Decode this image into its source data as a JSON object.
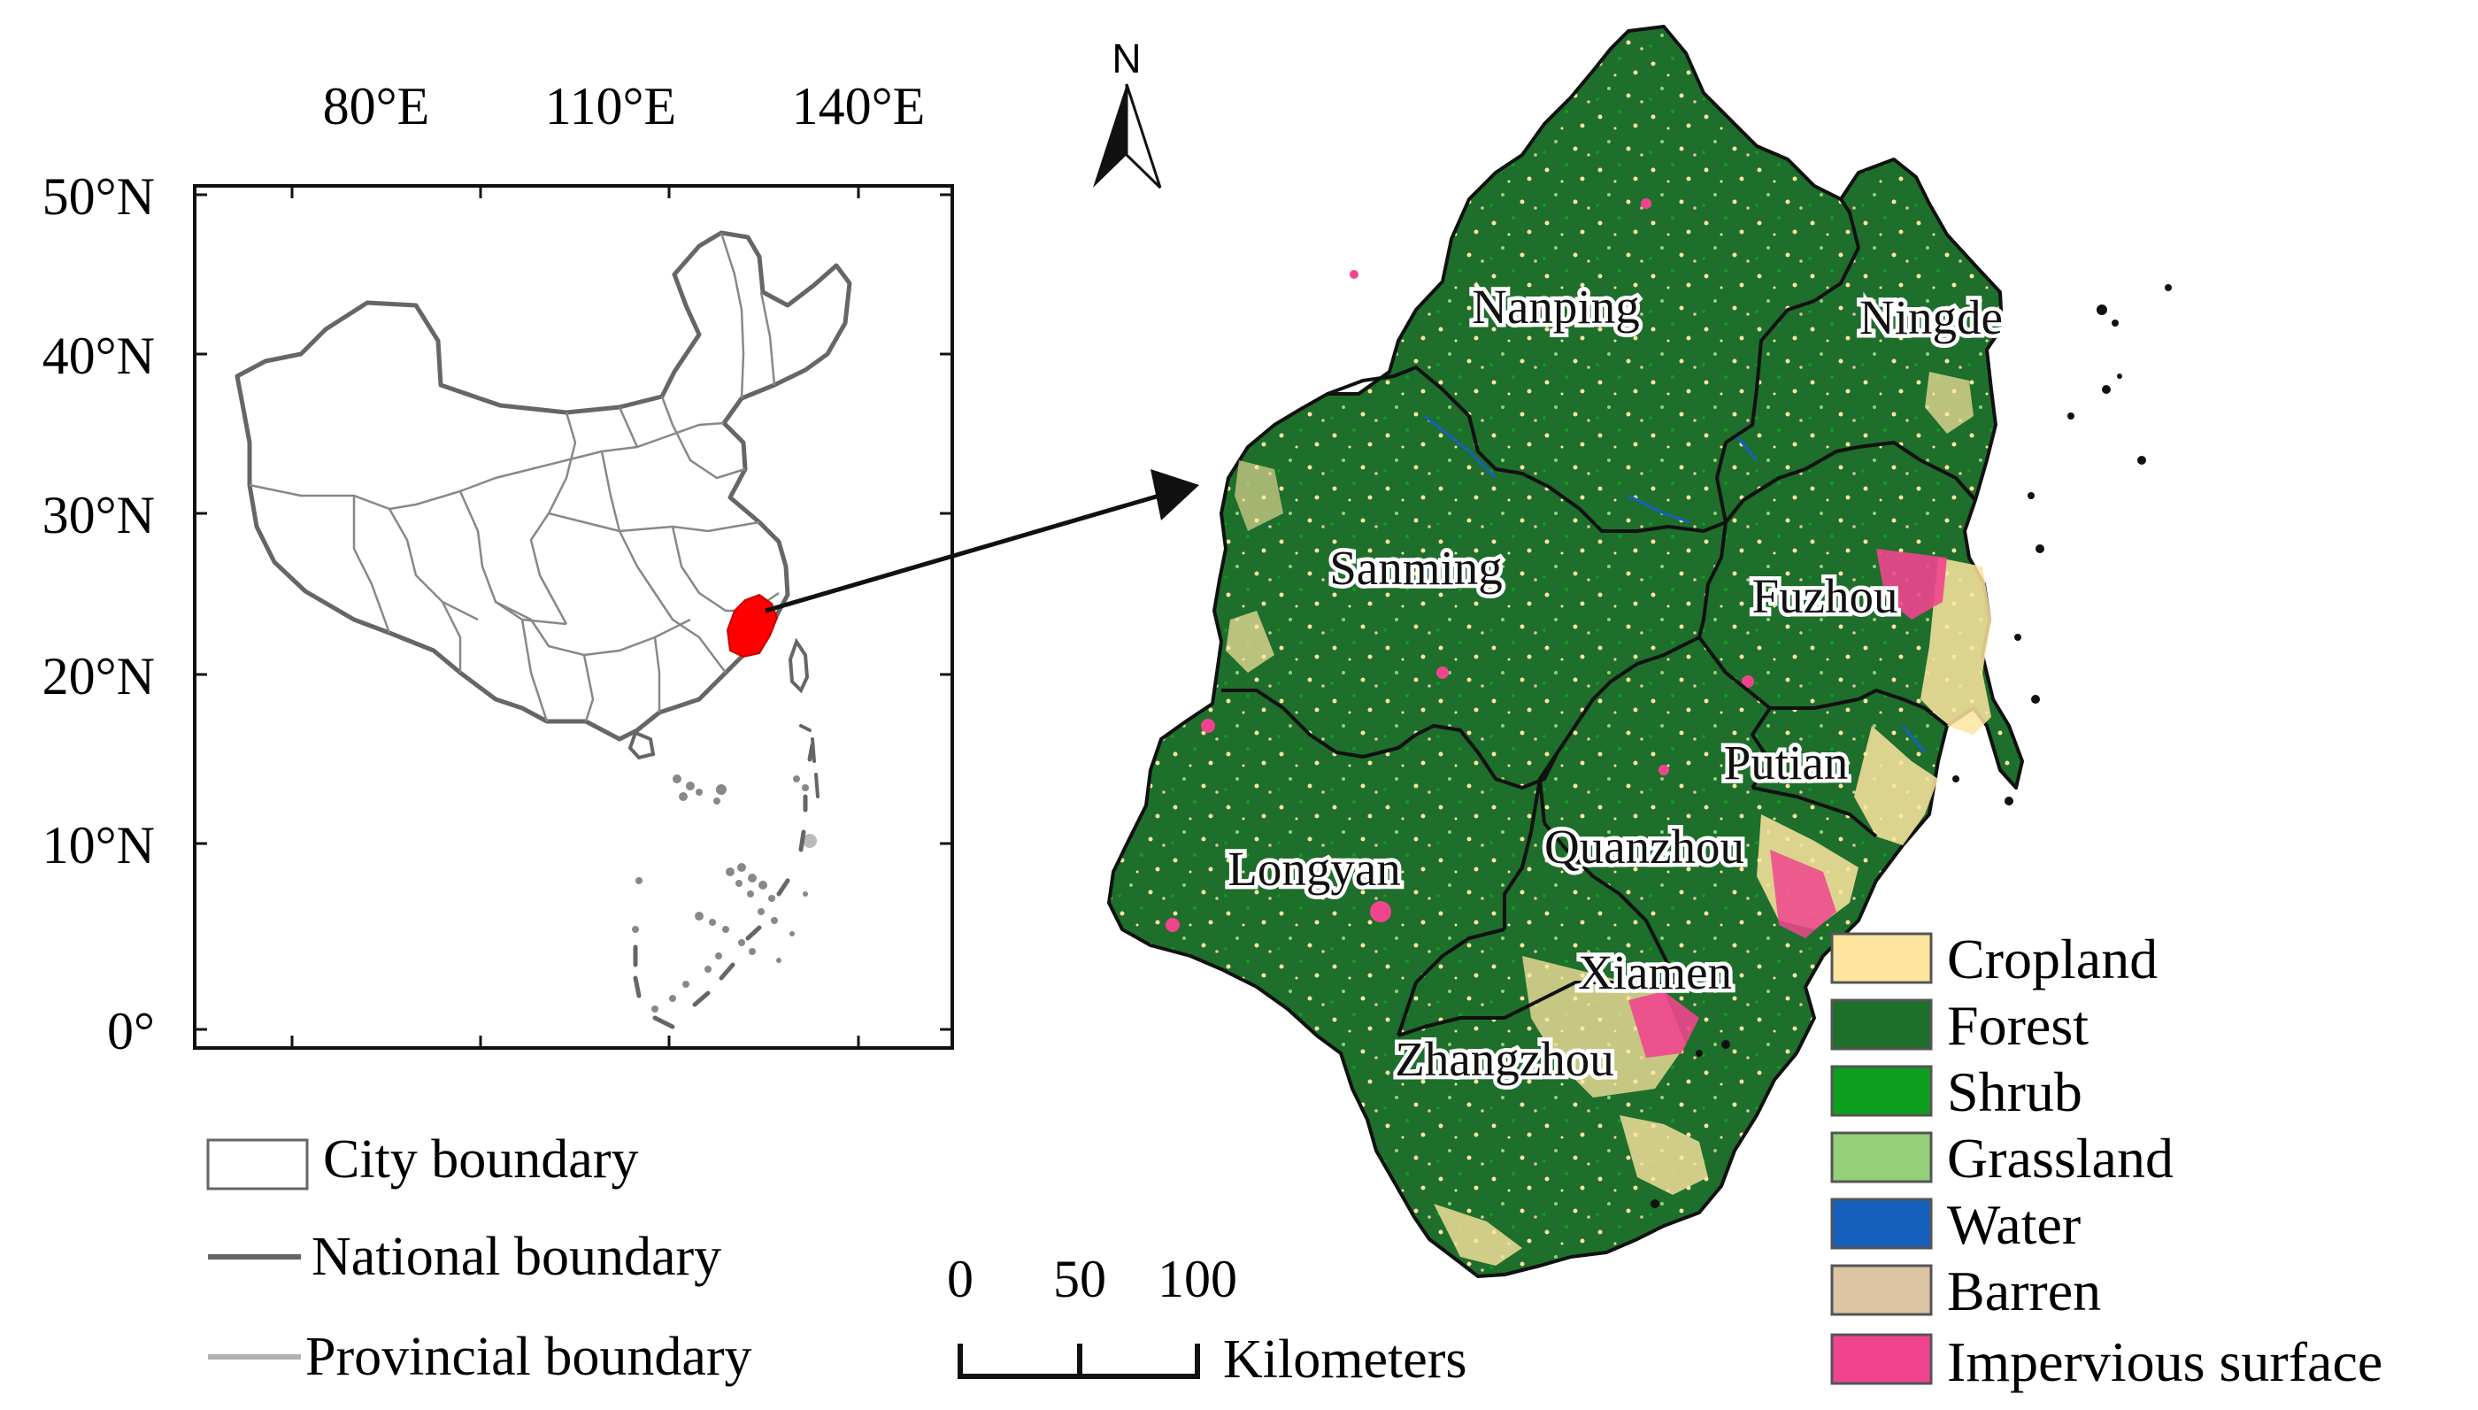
{
  "inset": {
    "lon_labels": [
      "80°E",
      "110°E",
      "140°E"
    ],
    "lat_labels": [
      "50°N",
      "40°N",
      "30°N",
      "20°N",
      "10°N",
      "0°"
    ]
  },
  "inset_legend": {
    "items": [
      {
        "label": "City boundary",
        "symbol": "box"
      },
      {
        "label": "National boundary",
        "symbol": "line-dark"
      },
      {
        "label": "Provincial boundary",
        "symbol": "line-light"
      }
    ],
    "national_color": "#666666",
    "provincial_color": "#b0b0b0",
    "highlight_color": "#ff0000"
  },
  "north_arrow": {
    "label": "N"
  },
  "scale_bar": {
    "ticks": [
      "0",
      "50",
      "100"
    ],
    "unit": "Kilometers"
  },
  "cities": [
    "Nanping",
    "Ningde",
    "Sanming",
    "Fuzhou",
    "Putian",
    "Longyan",
    "Quanzhou",
    "Xiamen",
    "Zhangzhou"
  ],
  "land_cover_legend": [
    {
      "label": "Cropland",
      "color": "#fde5a0"
    },
    {
      "label": "Forest",
      "color": "#1e6e2c"
    },
    {
      "label": "Shrub",
      "color": "#0e9e1e"
    },
    {
      "label": "Grassland",
      "color": "#95d07a"
    },
    {
      "label": "Water",
      "color": "#1560bd"
    },
    {
      "label": "Barren",
      "color": "#dcc4a4"
    },
    {
      "label": "Impervious surface",
      "color": "#f0458e"
    }
  ]
}
